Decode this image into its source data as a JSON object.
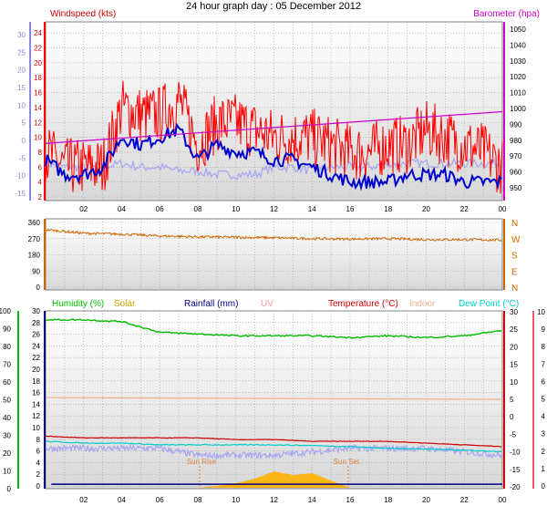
{
  "title": "24 hour graph day : 05 December 2012",
  "x_ticks": [
    "02",
    "04",
    "06",
    "08",
    "10",
    "12",
    "14",
    "16",
    "18",
    "20",
    "22",
    "00"
  ],
  "colors": {
    "wind": "#ff0000",
    "gust_avg": "#0000cc",
    "wind_light": "#a8a8f0",
    "baro": "#cc00cc",
    "dir": "#cc6600",
    "humidity": "#00bb00",
    "solar": "#d4a000",
    "rain": "#000080",
    "uv": "#ff9999",
    "temp": "#cc0000",
    "indoor": "#f0b090",
    "dew": "#00cccc",
    "sun": "#ffb000"
  },
  "chart_data": [
    {
      "type": "line",
      "name": "wind_panel",
      "title": "",
      "left_label": "Windspeed (kts)",
      "right_label": "Barometer (hpa)",
      "y_left_ticks": [
        2,
        4,
        6,
        8,
        10,
        12,
        14,
        16,
        18,
        20,
        22,
        24
      ],
      "y_right_ticks": [
        950,
        960,
        970,
        980,
        990,
        1000,
        1010,
        1020,
        1030,
        1040,
        1050
      ],
      "y_outer_ticks": [
        -15,
        -10,
        -5,
        0,
        5,
        10,
        15,
        20,
        25,
        30
      ],
      "ylim_left": [
        2,
        25
      ],
      "ylim_right": [
        950,
        1050
      ],
      "series": [
        {
          "key": "wind_gust",
          "axis": "left",
          "x": [
            0,
            1,
            2,
            3,
            4,
            5,
            6,
            7,
            8,
            9,
            10,
            11,
            12,
            13,
            14,
            15,
            16,
            17,
            18,
            19,
            20,
            21,
            22,
            23,
            24
          ],
          "values": [
            8,
            6,
            6,
            6,
            14,
            13,
            13,
            15,
            9,
            12,
            12,
            11,
            10,
            10,
            10,
            9,
            8,
            8,
            9,
            9,
            11,
            10,
            9,
            8,
            6
          ]
        },
        {
          "key": "wind_avg",
          "axis": "left",
          "x": [
            0,
            1,
            2,
            3,
            4,
            5,
            6,
            7,
            8,
            9,
            10,
            11,
            12,
            13,
            14,
            15,
            16,
            17,
            18,
            19,
            20,
            21,
            22,
            23,
            24
          ],
          "values": [
            7,
            5,
            5,
            6,
            10,
            9,
            10,
            11,
            7,
            9,
            8,
            8,
            7,
            7,
            6,
            5,
            4,
            4,
            4,
            5,
            5,
            5,
            4,
            4,
            4
          ]
        },
        {
          "key": "barometer",
          "axis": "right",
          "x": [
            0,
            24
          ],
          "values": [
            978,
            998
          ]
        },
        {
          "key": "wind_light",
          "axis": "left",
          "x": [
            0,
            1,
            2,
            3,
            4,
            5,
            6,
            7,
            8,
            9,
            10,
            11,
            12,
            13,
            14,
            15,
            16,
            17,
            18,
            19,
            20,
            21,
            22,
            23,
            24
          ],
          "values": [
            6.5,
            6,
            6,
            6,
            6.5,
            6,
            6,
            5.5,
            5.5,
            5,
            5,
            5,
            6,
            6,
            5.5,
            6,
            6,
            6,
            6.5,
            6.5,
            6.5,
            6.5,
            6.5,
            6.5,
            6.5
          ]
        }
      ]
    },
    {
      "type": "line",
      "name": "direction_panel",
      "y_left_ticks": [
        0,
        90,
        180,
        270,
        360
      ],
      "y_right_ticks": [
        "N",
        "E",
        "S",
        "W",
        "N"
      ],
      "ylim": [
        0,
        360
      ],
      "series": [
        {
          "key": "wind_dir",
          "x": [
            0,
            2,
            4,
            6,
            8,
            10,
            12,
            14,
            16,
            18,
            20,
            22,
            24
          ],
          "values": [
            320,
            300,
            295,
            285,
            280,
            278,
            275,
            270,
            268,
            270,
            265,
            265,
            262
          ]
        }
      ]
    },
    {
      "type": "line",
      "name": "environment_panel",
      "legend": {
        "humidity": "Humidity (%)",
        "solar": "Solar",
        "rain": "Rainfall (mm)",
        "uv": "UV",
        "temp": "Temperature (°C)",
        "indoor": "Indoor",
        "dew": "Dew Point (°C)"
      },
      "annotations": {
        "sunrise": "Sun Rise",
        "sunset": "Sun Set"
      },
      "y_humidity_ticks": [
        0,
        10,
        20,
        30,
        40,
        50,
        60,
        70,
        80,
        90,
        100
      ],
      "y_rain_ticks": [
        0,
        2,
        4,
        6,
        8,
        10,
        12,
        14,
        16,
        18,
        20,
        22,
        24,
        26,
        28,
        30
      ],
      "y_temp_ticks": [
        -20,
        -15,
        -10,
        -5,
        0,
        5,
        10,
        15,
        20,
        25,
        30
      ],
      "y_uv_ticks": [
        0,
        1,
        2,
        3,
        4,
        5,
        6,
        7,
        8,
        9,
        10
      ],
      "series": [
        {
          "key": "humidity",
          "axis": "humidity",
          "x": [
            0,
            2,
            4,
            6,
            8,
            10,
            12,
            14,
            16,
            18,
            20,
            22,
            24
          ],
          "values": [
            95,
            95,
            94,
            88,
            87,
            86,
            86,
            86,
            85,
            86,
            85,
            86,
            89
          ]
        },
        {
          "key": "temp",
          "axis": "temp",
          "x": [
            0,
            2,
            4,
            6,
            8,
            10,
            12,
            14,
            16,
            18,
            20,
            22,
            24
          ],
          "values": [
            -5.5,
            -6,
            -6,
            -6,
            -6,
            -6.5,
            -6.5,
            -7,
            -7,
            -7,
            -7.5,
            -8,
            -8.5
          ]
        },
        {
          "key": "dew",
          "axis": "temp",
          "x": [
            0,
            2,
            4,
            6,
            8,
            10,
            12,
            14,
            16,
            18,
            20,
            22,
            24
          ],
          "values": [
            -7,
            -7.5,
            -7.5,
            -8,
            -8,
            -8,
            -8,
            -8.2,
            -8.5,
            -9,
            -9.2,
            -9.5,
            -10
          ]
        },
        {
          "key": "indoor",
          "axis": "temp",
          "x": [
            0,
            24
          ],
          "values": [
            5.5,
            5
          ]
        },
        {
          "key": "wind_light2",
          "axis": "temp",
          "x": [
            0,
            2,
            4,
            6,
            8,
            10,
            12,
            14,
            16,
            18,
            20,
            22,
            24
          ],
          "values": [
            -9,
            -9,
            -9,
            -9,
            -11,
            -11,
            -11,
            -10,
            -9,
            -9,
            -9,
            -10,
            -11
          ]
        },
        {
          "key": "rain",
          "axis": "rain",
          "x": [
            0,
            24
          ],
          "values": [
            0.3,
            0.3
          ]
        },
        {
          "key": "solar",
          "axis": "solar",
          "x": [
            8,
            9,
            10,
            11,
            12,
            13,
            14,
            15,
            16
          ],
          "values": [
            0,
            2,
            5,
            10,
            18,
            14,
            16,
            8,
            0
          ]
        }
      ],
      "sunrise_hour": 8.1,
      "sunset_hour": 15.9
    }
  ]
}
